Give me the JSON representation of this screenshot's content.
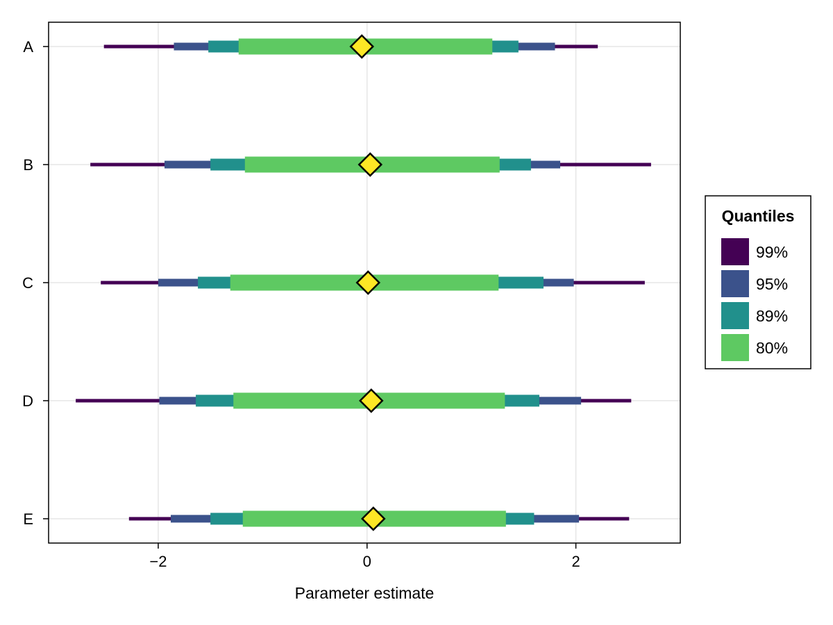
{
  "chart_data": {
    "type": "forest-interval",
    "xlabel": "Parameter estimate",
    "xlim": [
      -3.05,
      3.0
    ],
    "xticks": [
      -2,
      0,
      2
    ],
    "xtick_labels": [
      "−2",
      "0",
      "2"
    ],
    "grid": true,
    "categories": [
      "A",
      "B",
      "C",
      "D",
      "E"
    ],
    "legend": {
      "title": "Quantiles",
      "placement": "right",
      "entries": [
        {
          "label": "99%",
          "color": "#440154"
        },
        {
          "label": "95%",
          "color": "#3b528b"
        },
        {
          "label": "89%",
          "color": "#21908c"
        },
        {
          "label": "80%",
          "color": "#5ec962"
        }
      ]
    },
    "point_color": "#fde725",
    "series": [
      {
        "category": "A",
        "estimate": -0.05,
        "intervals": {
          "99%": [
            -2.52,
            2.21
          ],
          "95%": [
            -1.85,
            1.8
          ],
          "89%": [
            -1.52,
            1.45
          ],
          "80%": [
            -1.23,
            1.2
          ]
        }
      },
      {
        "category": "B",
        "estimate": 0.03,
        "intervals": {
          "99%": [
            -2.65,
            2.72
          ],
          "95%": [
            -1.94,
            1.85
          ],
          "89%": [
            -1.5,
            1.57
          ],
          "80%": [
            -1.17,
            1.27
          ]
        }
      },
      {
        "category": "C",
        "estimate": 0.01,
        "intervals": {
          "99%": [
            -2.55,
            2.66
          ],
          "95%": [
            -2.0,
            1.98
          ],
          "89%": [
            -1.62,
            1.69
          ],
          "80%": [
            -1.31,
            1.26
          ]
        }
      },
      {
        "category": "D",
        "estimate": 0.04,
        "intervals": {
          "99%": [
            -2.79,
            2.53
          ],
          "95%": [
            -1.99,
            2.05
          ],
          "89%": [
            -1.64,
            1.65
          ],
          "80%": [
            -1.28,
            1.32
          ]
        }
      },
      {
        "category": "E",
        "estimate": 0.06,
        "intervals": {
          "99%": [
            -2.28,
            2.51
          ],
          "95%": [
            -1.88,
            2.03
          ],
          "89%": [
            -1.5,
            1.6
          ],
          "80%": [
            -1.19,
            1.33
          ]
        }
      }
    ]
  }
}
